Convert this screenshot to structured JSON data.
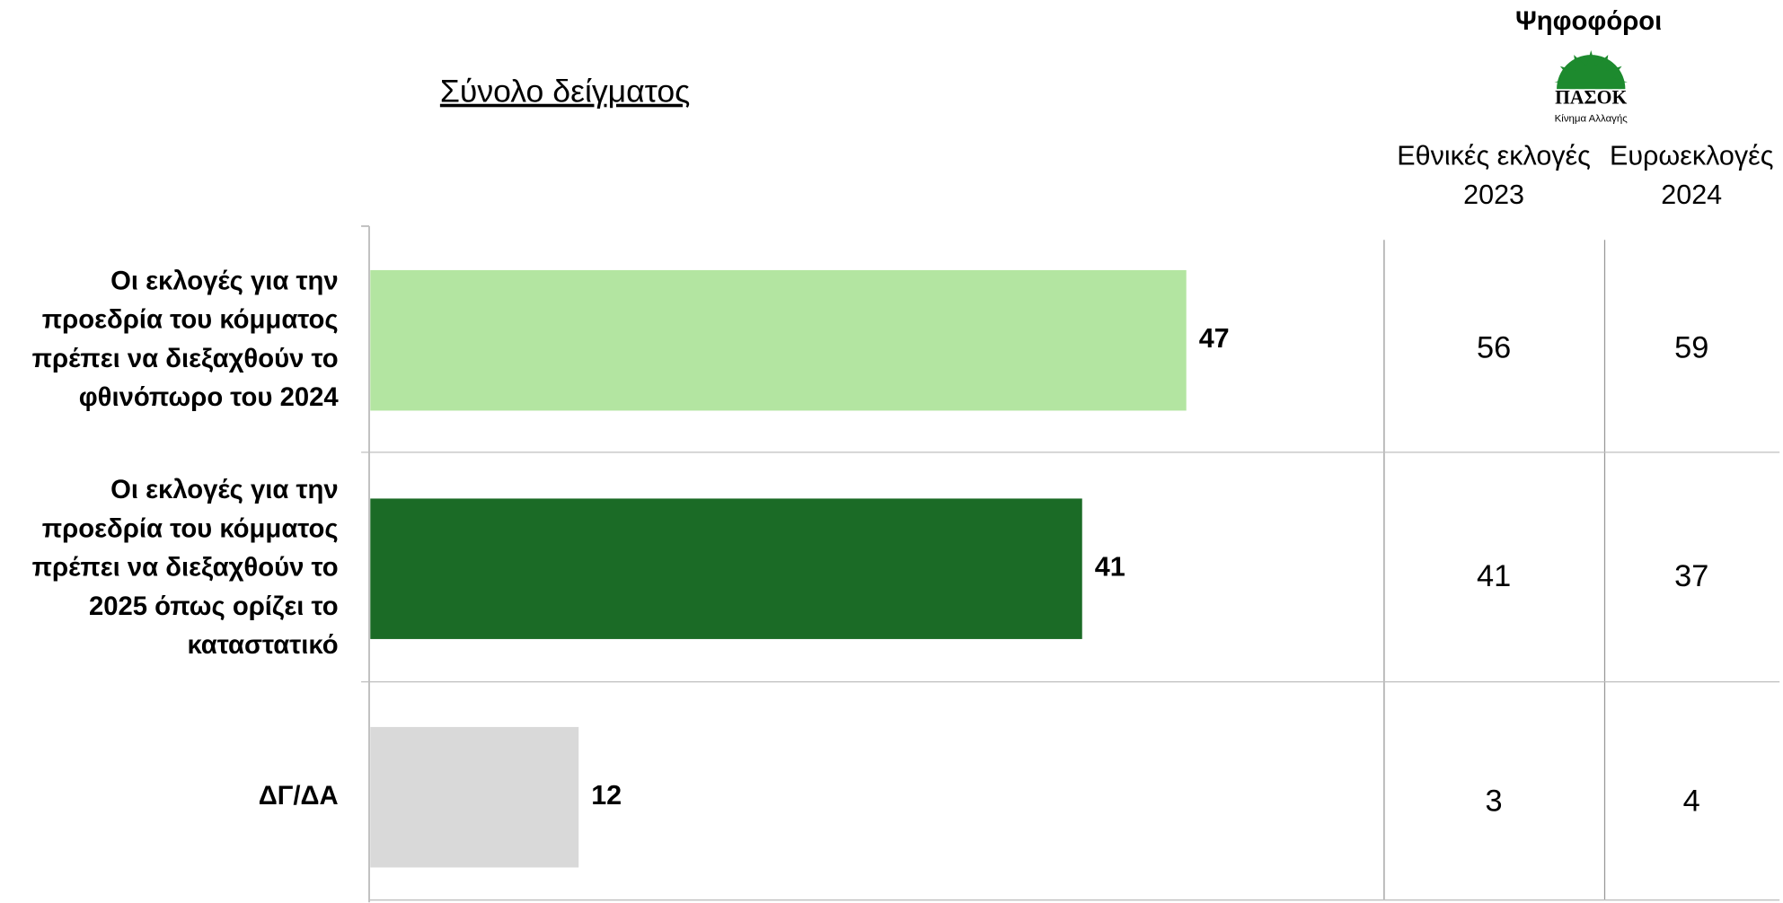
{
  "chart_data": {
    "type": "bar",
    "orientation": "horizontal",
    "title": "Σύνολο δείγματος",
    "categories": [
      "Οι εκλογές για την προεδρία του κόμματος πρέπει να διεξαχθούν το φθινόπωρο του 2024",
      "Οι εκλογές για την προεδρία του κόμματος πρέπει να διεξαχθούν το 2025 όπως ορίζει το καταστατικό",
      "ΔΓ/ΔΑ"
    ],
    "values": [
      47,
      41,
      12
    ],
    "colors": [
      "#b3e5a1",
      "#1b6b26",
      "#d9d9d9"
    ],
    "table": {
      "header": "Ψηφοφόροι",
      "logo": {
        "name": "ΠΑΣΟΚ",
        "subtitle": "Κίνημα Αλλαγής"
      },
      "columns": [
        [
          "Εθνικές εκλογές",
          "2023"
        ],
        [
          "Ευρωεκλογές",
          "2024"
        ]
      ],
      "rows": [
        [
          56,
          59
        ],
        [
          41,
          37
        ],
        [
          3,
          4
        ]
      ]
    }
  }
}
